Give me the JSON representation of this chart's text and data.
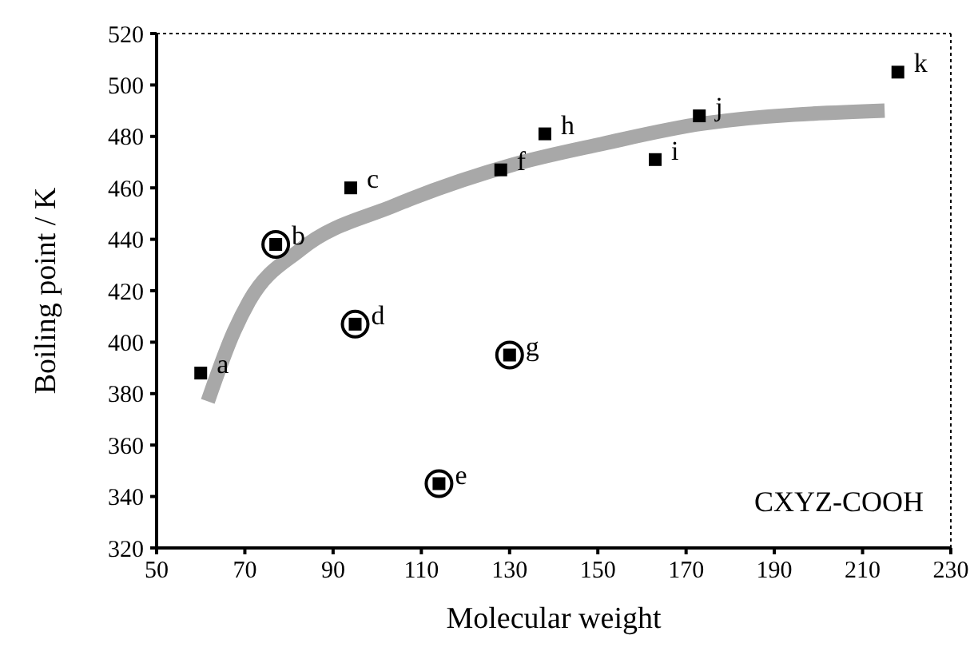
{
  "chart_data": {
    "type": "scatter",
    "xlabel": "Molecular weight",
    "ylabel": "Boiling point / K",
    "xlim": [
      50,
      230
    ],
    "xticks": [
      50,
      70,
      90,
      110,
      130,
      150,
      170,
      190,
      210,
      230
    ],
    "ylim": [
      320,
      520
    ],
    "yticks": [
      320,
      340,
      360,
      380,
      400,
      420,
      440,
      460,
      480,
      500,
      520
    ],
    "grid": false,
    "series": [
      {
        "type": "line",
        "color": "#a8a8a8",
        "x": [
          61.6,
          67.5,
          71,
          82.6,
          103.7,
          130.7,
          150.7,
          173.9,
          215
        ],
        "values": [
          377,
          404,
          416,
          436,
          453,
          469,
          477,
          485,
          490
        ]
      },
      {
        "marker": "square",
        "color": "#000000",
        "x": [
          60,
          77,
          94,
          95,
          114,
          128,
          130,
          138,
          163,
          173,
          218
        ],
        "values": [
          388,
          438,
          460,
          407,
          345,
          467,
          395,
          481,
          471,
          488,
          505
        ]
      },
      {
        "marker": "circle",
        "color": "#000000",
        "x": [
          77,
          95,
          114,
          130
        ],
        "values": [
          438,
          407,
          345,
          395
        ]
      }
    ],
    "annotations": [
      {
        "text": "a",
        "x": 60,
        "y": 388
      },
      {
        "text": "b",
        "x": 77,
        "y": 438
      },
      {
        "text": "c",
        "x": 94,
        "y": 460
      },
      {
        "text": "d",
        "x": 95,
        "y": 407
      },
      {
        "text": "e",
        "x": 114,
        "y": 345
      },
      {
        "text": "f",
        "x": 128,
        "y": 467
      },
      {
        "text": "g",
        "x": 130,
        "y": 395
      },
      {
        "text": "h",
        "x": 138,
        "y": 481
      },
      {
        "text": "i",
        "x": 163,
        "y": 471
      },
      {
        "text": "j",
        "x": 173,
        "y": 488
      },
      {
        "text": "k",
        "x": 218,
        "y": 505
      },
      "CXYZ-COOH"
    ]
  }
}
